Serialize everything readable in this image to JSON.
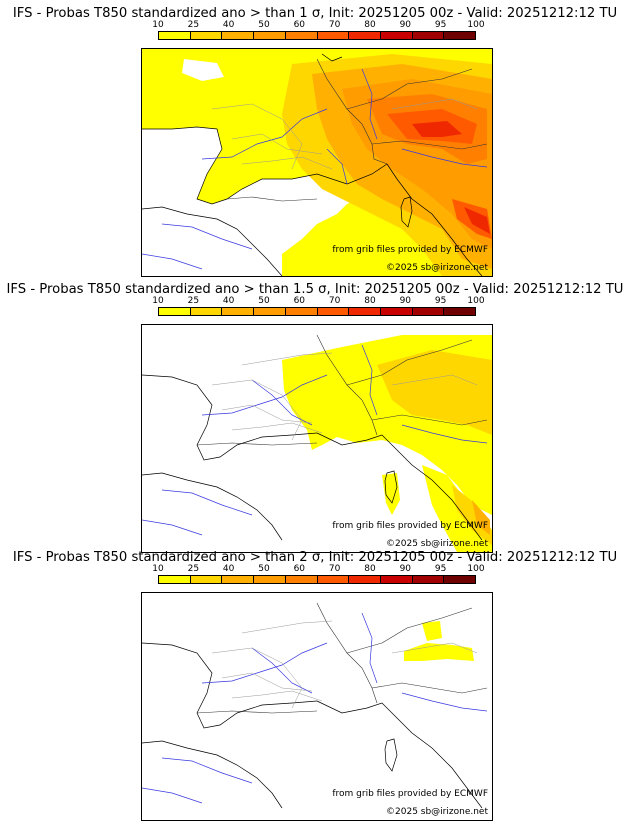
{
  "colorbar": {
    "labels": [
      "10",
      "25",
      "40",
      "50",
      "60",
      "70",
      "80",
      "90",
      "95",
      "100"
    ],
    "colors": [
      "#ffff00",
      "#ffd700",
      "#ffb000",
      "#ff9c00",
      "#ff8000",
      "#ff5a00",
      "#f02800",
      "#c80000",
      "#a00000",
      "#6e0000"
    ]
  },
  "panels": [
    {
      "title": "IFS - Probas T850  standardized ano > than 1 σ, Init: 20251205 00z - Valid: 20251212:12 TU",
      "credit_source": "from grib files provided by ECMWF",
      "credit_copyright": "©2025 sb@irizone.net"
    },
    {
      "title": "IFS - Probas T850  standardized ano > than 1.5 σ, Init: 20251205 00z - Valid: 20251212:12 TU",
      "credit_source": "from grib files provided by ECMWF",
      "credit_copyright": "©2025 sb@irizone.net"
    },
    {
      "title": "IFS - Probas T850  standardized ano > than 2 σ, Init: 20251205 00z - Valid: 20251212:12 TU",
      "credit_source": "from grib files provided by ECMWF",
      "credit_copyright": "©2025 sb@irizone.net"
    }
  ]
}
